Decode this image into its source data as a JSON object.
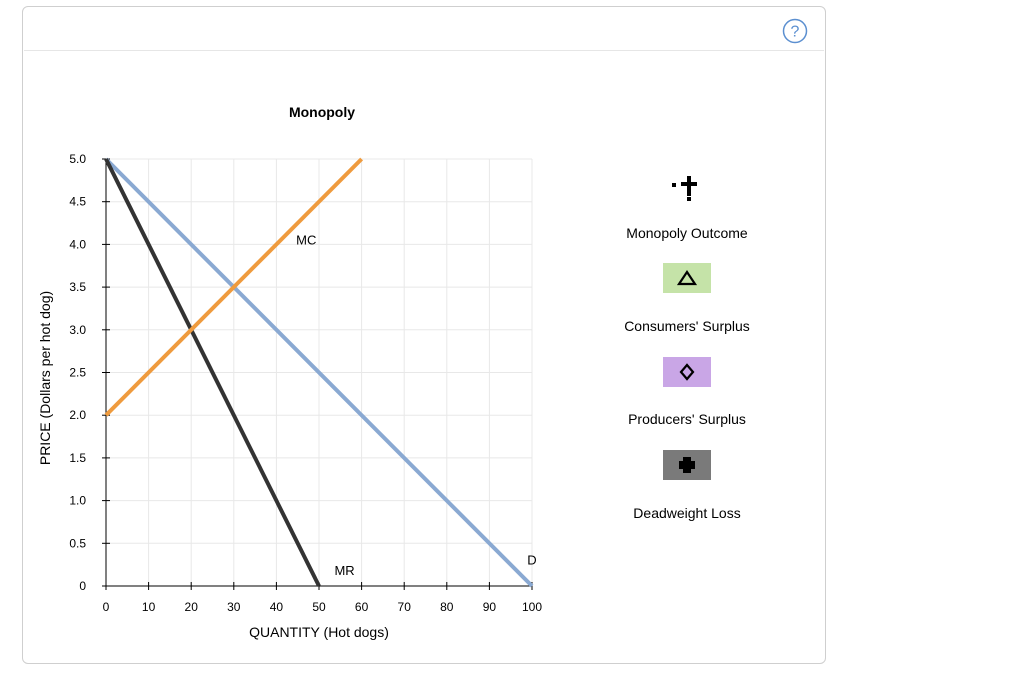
{
  "help_icon": "question-mark-icon",
  "chart_data": {
    "type": "line",
    "title": "Monopoly",
    "xlabel": "QUANTITY (Hot dogs)",
    "ylabel": "PRICE (Dollars per hot dog)",
    "xlim": [
      0,
      100
    ],
    "ylim": [
      0,
      5
    ],
    "x_ticks": [
      "0",
      "10",
      "20",
      "30",
      "40",
      "50",
      "60",
      "70",
      "80",
      "90",
      "100"
    ],
    "y_ticks": [
      "0",
      "0.5",
      "1.0",
      "1.5",
      "2.0",
      "2.5",
      "3.0",
      "3.5",
      "4.0",
      "4.5",
      "5.0"
    ],
    "grid": true,
    "series": [
      {
        "name": "D",
        "color": "#8aa9d2",
        "points": [
          [
            0,
            5
          ],
          [
            100,
            0
          ]
        ]
      },
      {
        "name": "MR",
        "color": "#333333",
        "points": [
          [
            0,
            5
          ],
          [
            50,
            0
          ]
        ]
      },
      {
        "name": "MC",
        "color": "#ef9b3e",
        "points": [
          [
            0,
            2
          ],
          [
            60,
            5
          ]
        ]
      }
    ],
    "series_labels": [
      {
        "text": "MC",
        "x": 47,
        "y": 4.0
      },
      {
        "text": "MR",
        "x": 56,
        "y": 0.13
      },
      {
        "text": "D",
        "x": 100,
        "y": 0.25
      }
    ]
  },
  "legend": [
    {
      "label": "Monopoly Outcome",
      "icon": "cross-point-icon",
      "color": "#000000"
    },
    {
      "label": "Consumers' Surplus",
      "icon": "triangle-icon",
      "color": "#c5e3a8"
    },
    {
      "label": "Producers' Surplus",
      "icon": "diamond-icon",
      "color": "#c9a6e6"
    },
    {
      "label": "Deadweight Loss",
      "icon": "plus-icon",
      "color": "#7a7a7a"
    }
  ]
}
